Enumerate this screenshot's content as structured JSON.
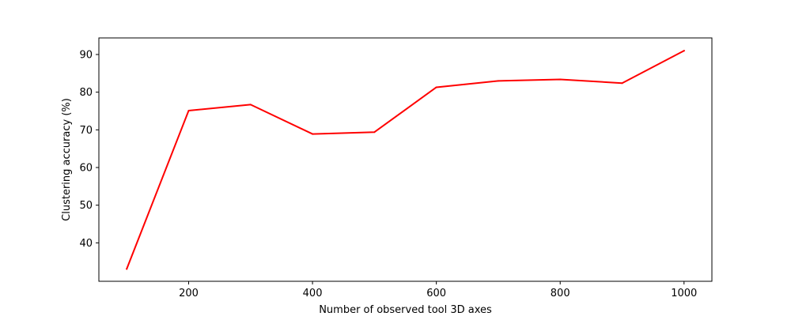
{
  "chart_data": {
    "type": "line",
    "title": "",
    "xlabel": "Number of observed tool 3D axes",
    "ylabel": "Clustering accuracy (%)",
    "xlim": [
      55,
      1045
    ],
    "ylim": [
      29.8,
      94.4
    ],
    "x_ticks": [
      200,
      400,
      600,
      800,
      1000
    ],
    "y_ticks": [
      40,
      50,
      60,
      70,
      80,
      90
    ],
    "grid": false,
    "legend": "none",
    "series": [
      {
        "color": "#ff0000",
        "x": [
          100,
          200,
          300,
          400,
          500,
          600,
          700,
          800,
          900,
          1000
        ],
        "y": [
          33.1,
          75.1,
          76.7,
          68.9,
          69.4,
          81.3,
          83.0,
          83.4,
          82.4,
          91.0
        ]
      }
    ]
  }
}
